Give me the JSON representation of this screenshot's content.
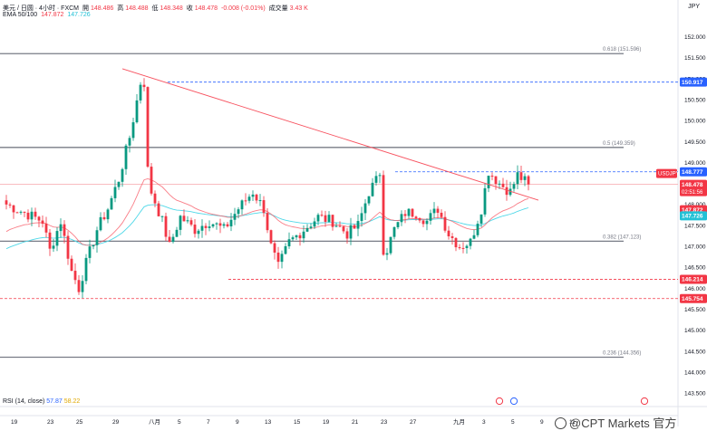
{
  "header": {
    "symbol": "美元 / 日圆 · 4小时 · FXCM",
    "open_label": "開",
    "open": "148.486",
    "high_label": "高",
    "high": "148.488",
    "low_label": "低",
    "low": "148.348",
    "close_label": "收",
    "close": "148.478",
    "change": "-0.008 (-0.01%)",
    "volume_label": "成交量",
    "volume": "3.43 K",
    "ema_label": "EMA 50/100",
    "ema50": "147.872",
    "ema100": "147.726",
    "currency": "JPY"
  },
  "rsi": {
    "label": "RSI (14, close)",
    "v1": "57.87",
    "v2": "58.22"
  },
  "watermark": "@CPT Markets 官方",
  "chart_data": {
    "type": "candlestick",
    "ylim": [
      143.2,
      152.4
    ],
    "y_ticks": [
      "152.000",
      "151.500",
      "151.000",
      "150.500",
      "150.000",
      "149.500",
      "149.000",
      "148.500",
      "148.000",
      "147.500",
      "147.000",
      "146.500",
      "146.000",
      "145.500",
      "145.000",
      "144.500",
      "144.000",
      "143.500"
    ],
    "x_ticks": [
      {
        "label": "19",
        "i": 2
      },
      {
        "label": "23",
        "i": 12
      },
      {
        "label": "25",
        "i": 20
      },
      {
        "label": "29",
        "i": 30
      },
      {
        "label": "八月",
        "i": 40
      },
      {
        "label": "5",
        "i": 48
      },
      {
        "label": "7",
        "i": 56
      },
      {
        "label": "9",
        "i": 64
      },
      {
        "label": "13",
        "i": 72
      },
      {
        "label": "15",
        "i": 80
      },
      {
        "label": "19",
        "i": 88
      },
      {
        "label": "21",
        "i": 96
      },
      {
        "label": "23",
        "i": 104
      },
      {
        "label": "27",
        "i": 112
      },
      {
        "label": "九月",
        "i": 124
      },
      {
        "label": "3",
        "i": 132
      },
      {
        "label": "5",
        "i": 140
      },
      {
        "label": "9",
        "i": 148
      },
      {
        "label": "11",
        "i": 156
      }
    ],
    "fib_levels": [
      {
        "label": "0.618 (151.596)",
        "value": 151.596
      },
      {
        "label": "0.5 (149.359)",
        "value": 149.359
      },
      {
        "label": "0.382 (147.123)",
        "value": 147.123
      },
      {
        "label": "0.236 (144.356)",
        "value": 144.356
      }
    ],
    "dashed_levels": [
      {
        "value": 150.917,
        "color": "#2962ff"
      },
      {
        "value": 148.777,
        "color": "#2962ff"
      },
      {
        "value": 146.214,
        "color": "#f23645"
      },
      {
        "value": 145.754,
        "color": "#f23645"
      }
    ],
    "price_tags": [
      {
        "label": "150.917",
        "value": 150.917,
        "color": "#2962ff"
      },
      {
        "label": "148.777",
        "value": 148.777,
        "color": "#2962ff"
      },
      {
        "label": "USDJPY",
        "value": 148.478,
        "color": "#f23645",
        "small": true
      },
      {
        "label": "146.214",
        "value": 146.214,
        "color": "#f23645"
      },
      {
        "label": "145.754",
        "value": 145.754,
        "color": "#f23645"
      }
    ],
    "current_tag": {
      "label": "148.478",
      "sub": "02:51:56",
      "value": 148.478
    },
    "ema_tags": [
      {
        "label": "147.872",
        "color": "#f23645"
      },
      {
        "label": "147.726",
        "color": "#22c1d6"
      }
    ],
    "trendline": {
      "from": {
        "i": 37,
        "v": 151.3
      },
      "to": {
        "i": 128,
        "v": 148.1
      }
    },
    "anchors": [
      [
        0,
        148.0
      ],
      [
        5,
        147.8
      ],
      [
        10,
        147.6
      ],
      [
        12,
        146.9
      ],
      [
        15,
        147.6
      ],
      [
        18,
        146.4
      ],
      [
        20,
        146.0
      ],
      [
        22,
        146.6
      ],
      [
        25,
        147.4
      ],
      [
        28,
        147.9
      ],
      [
        31,
        148.6
      ],
      [
        34,
        149.6
      ],
      [
        37,
        150.9
      ],
      [
        38,
        150.2
      ],
      [
        40,
        148.3
      ],
      [
        43,
        147.6
      ],
      [
        45,
        147.0
      ],
      [
        48,
        147.7
      ],
      [
        52,
        147.4
      ],
      [
        56,
        147.6
      ],
      [
        60,
        147.4
      ],
      [
        64,
        147.9
      ],
      [
        68,
        148.3
      ],
      [
        71,
        147.9
      ],
      [
        73,
        147.0
      ],
      [
        75,
        146.5
      ],
      [
        78,
        147.1
      ],
      [
        82,
        147.4
      ],
      [
        86,
        147.7
      ],
      [
        90,
        147.6
      ],
      [
        94,
        147.3
      ],
      [
        97,
        147.5
      ],
      [
        100,
        148.3
      ],
      [
        103,
        148.7
      ],
      [
        104,
        146.7
      ],
      [
        107,
        147.4
      ],
      [
        110,
        147.8
      ],
      [
        113,
        147.8
      ],
      [
        116,
        147.6
      ],
      [
        119,
        147.9
      ],
      [
        122,
        147.3
      ],
      [
        125,
        147.0
      ],
      [
        128,
        147.1
      ],
      [
        131,
        147.9
      ],
      [
        133,
        148.8
      ],
      [
        136,
        148.5
      ],
      [
        139,
        148.3
      ],
      [
        141,
        148.7
      ],
      [
        144,
        148.478
      ]
    ]
  }
}
